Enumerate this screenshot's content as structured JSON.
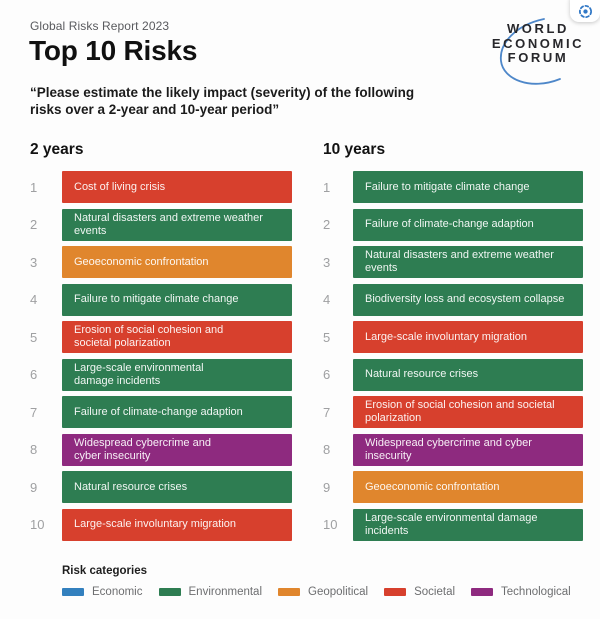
{
  "header": {
    "report_label": "Global Risks Report 2023",
    "title": "Top 10 Risks",
    "subtitle": "“Please estimate the likely impact (severity) of the following\nrisks over a 2-year and 10-year period”"
  },
  "logo": {
    "lines": [
      "WORLD",
      "ECONOMIC",
      "FORUM"
    ],
    "arc_color": "#4e87c9"
  },
  "capture_chip": {
    "icon_color": "#3178c6"
  },
  "colors": {
    "economic": "#3380be",
    "environmental": "#2e7d52",
    "geopolitical": "#e0862d",
    "societal": "#d7402d",
    "technological": "#8e2a7f",
    "rank_number": "#9fa0a2"
  },
  "columns": [
    {
      "header": "2 years",
      "items": [
        {
          "rank": "1",
          "label": "Cost of living crisis",
          "category": "societal"
        },
        {
          "rank": "2",
          "label": "Natural disasters and extreme weather\nevents",
          "category": "environmental"
        },
        {
          "rank": "3",
          "label": "Geoeconomic confrontation",
          "category": "geopolitical"
        },
        {
          "rank": "4",
          "label": "Failure to mitigate climate change",
          "category": "environmental"
        },
        {
          "rank": "5",
          "label": "Erosion of social cohesion and\nsocietal polarization",
          "category": "societal"
        },
        {
          "rank": "6",
          "label": "Large-scale environmental\ndamage incidents",
          "category": "environmental"
        },
        {
          "rank": "7",
          "label": "Failure of climate-change adaption",
          "category": "environmental"
        },
        {
          "rank": "8",
          "label": "Widespread cybercrime and\ncyber insecurity",
          "category": "technological"
        },
        {
          "rank": "9",
          "label": "Natural resource crises",
          "category": "environmental"
        },
        {
          "rank": "10",
          "label": "Large-scale involuntary migration",
          "category": "societal"
        }
      ]
    },
    {
      "header": "10 years",
      "items": [
        {
          "rank": "1",
          "label": "Failure to mitigate climate change",
          "category": "environmental"
        },
        {
          "rank": "2",
          "label": "Failure of climate-change adaption",
          "category": "environmental"
        },
        {
          "rank": "3",
          "label": "Natural disasters and extreme weather\nevents",
          "category": "environmental"
        },
        {
          "rank": "4",
          "label": "Biodiversity loss and ecosystem collapse",
          "category": "environmental"
        },
        {
          "rank": "5",
          "label": "Large-scale involuntary migration",
          "category": "societal"
        },
        {
          "rank": "6",
          "label": "Natural resource crises",
          "category": "environmental"
        },
        {
          "rank": "7",
          "label": "Erosion of social cohesion and societal\npolarization",
          "category": "societal"
        },
        {
          "rank": "8",
          "label": "Widespread cybercrime and cyber\ninsecurity",
          "category": "technological"
        },
        {
          "rank": "9",
          "label": "Geoeconomic confrontation",
          "category": "geopolitical"
        },
        {
          "rank": "10",
          "label": "Large-scale environmental damage\nincidents",
          "category": "environmental"
        }
      ]
    }
  ],
  "legend": {
    "title": "Risk categories",
    "items": [
      {
        "label": "Economic",
        "category": "economic"
      },
      {
        "label": "Environmental",
        "category": "environmental"
      },
      {
        "label": "Geopolitical",
        "category": "geopolitical"
      },
      {
        "label": "Societal",
        "category": "societal"
      },
      {
        "label": "Technological",
        "category": "technological"
      }
    ]
  },
  "chart_data": {
    "type": "table",
    "title": "Top 10 Risks",
    "subtitle": "Please estimate the likely impact (severity) of the following risks over a 2-year and 10-year period",
    "source_label": "Global Risks Report 2023",
    "columns": [
      "2 years",
      "10 years"
    ],
    "series": [
      {
        "name": "2 years",
        "values": [
          {
            "rank": 1,
            "risk": "Cost of living crisis",
            "category": "Societal"
          },
          {
            "rank": 2,
            "risk": "Natural disasters and extreme weather events",
            "category": "Environmental"
          },
          {
            "rank": 3,
            "risk": "Geoeconomic confrontation",
            "category": "Geopolitical"
          },
          {
            "rank": 4,
            "risk": "Failure to mitigate climate change",
            "category": "Environmental"
          },
          {
            "rank": 5,
            "risk": "Erosion of social cohesion and societal polarization",
            "category": "Societal"
          },
          {
            "rank": 6,
            "risk": "Large-scale environmental damage incidents",
            "category": "Environmental"
          },
          {
            "rank": 7,
            "risk": "Failure of climate-change adaption",
            "category": "Environmental"
          },
          {
            "rank": 8,
            "risk": "Widespread cybercrime and cyber insecurity",
            "category": "Technological"
          },
          {
            "rank": 9,
            "risk": "Natural resource crises",
            "category": "Environmental"
          },
          {
            "rank": 10,
            "risk": "Large-scale involuntary migration",
            "category": "Societal"
          }
        ]
      },
      {
        "name": "10 years",
        "values": [
          {
            "rank": 1,
            "risk": "Failure to mitigate climate change",
            "category": "Environmental"
          },
          {
            "rank": 2,
            "risk": "Failure of climate-change adaption",
            "category": "Environmental"
          },
          {
            "rank": 3,
            "risk": "Natural disasters and extreme weather events",
            "category": "Environmental"
          },
          {
            "rank": 4,
            "risk": "Biodiversity loss and ecosystem collapse",
            "category": "Environmental"
          },
          {
            "rank": 5,
            "risk": "Large-scale involuntary migration",
            "category": "Societal"
          },
          {
            "rank": 6,
            "risk": "Natural resource crises",
            "category": "Environmental"
          },
          {
            "rank": 7,
            "risk": "Erosion of social cohesion and societal polarization",
            "category": "Societal"
          },
          {
            "rank": 8,
            "risk": "Widespread cybercrime and cyber insecurity",
            "category": "Technological"
          },
          {
            "rank": 9,
            "risk": "Geoeconomic confrontation",
            "category": "Geopolitical"
          },
          {
            "rank": 10,
            "risk": "Large-scale environmental damage incidents",
            "category": "Environmental"
          }
        ]
      }
    ],
    "legend_entries": [
      "Economic",
      "Environmental",
      "Geopolitical",
      "Societal",
      "Technological"
    ],
    "category_colors": {
      "Economic": "#3380be",
      "Environmental": "#2e7d52",
      "Geopolitical": "#e0862d",
      "Societal": "#d7402d",
      "Technological": "#8e2a7f"
    },
    "legend_position": "bottom"
  }
}
